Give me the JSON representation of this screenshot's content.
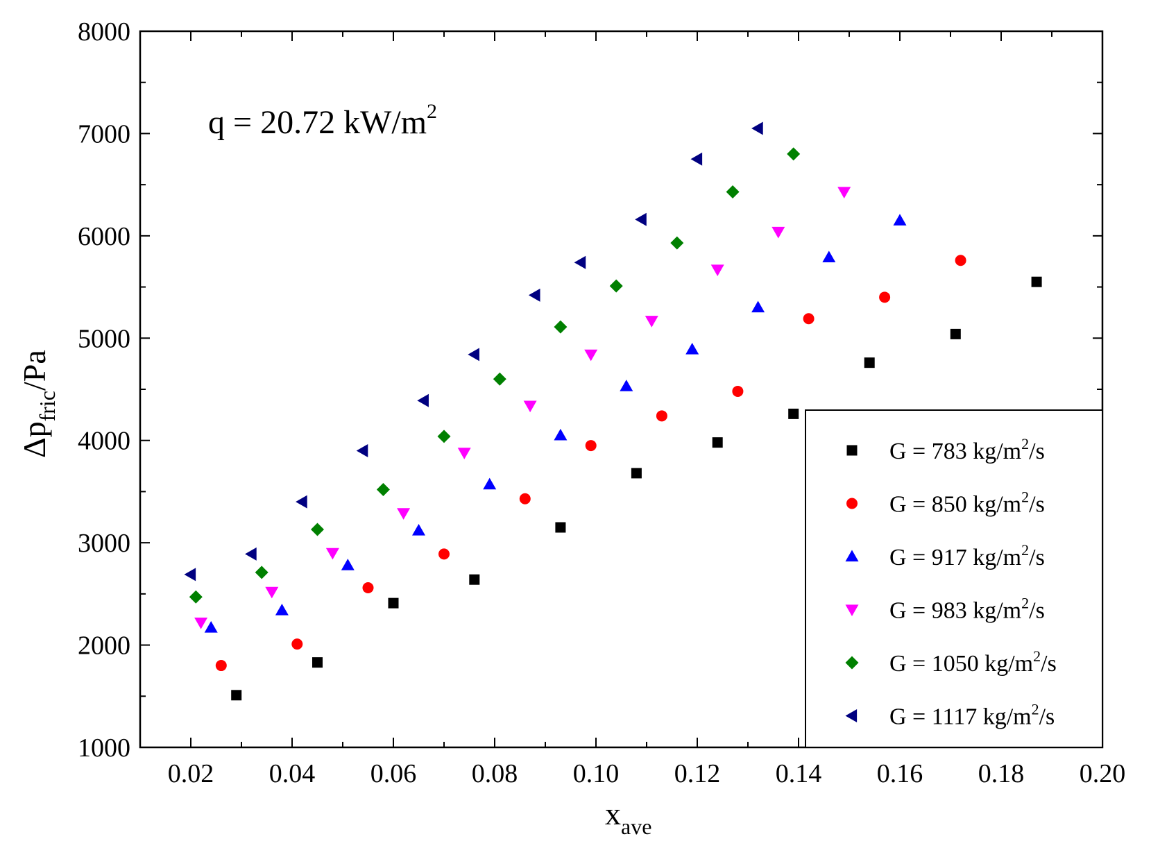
{
  "chart_data": {
    "type": "scatter",
    "title": "",
    "annotation": {
      "base": "q = 20.72 kW/m",
      "sup": "2"
    },
    "xlabel": {
      "base": "x",
      "sub": "ave"
    },
    "ylabel": {
      "pre": "Δp",
      "sub": "fric",
      "post": "/Pa"
    },
    "xlim": [
      0.01,
      0.2
    ],
    "ylim": [
      1000,
      8000
    ],
    "x_ticks": [
      0.02,
      0.04,
      0.06,
      0.08,
      0.1,
      0.12,
      0.14,
      0.16,
      0.18,
      0.2
    ],
    "x_tick_labels": [
      "0.02",
      "0.04",
      "0.06",
      "0.08",
      "0.10",
      "0.12",
      "0.14",
      "0.16",
      "0.18",
      "0.20"
    ],
    "y_ticks": [
      1000,
      2000,
      3000,
      4000,
      5000,
      6000,
      7000,
      8000
    ],
    "y_tick_labels": [
      "1000",
      "2000",
      "3000",
      "4000",
      "5000",
      "6000",
      "7000",
      "8000"
    ],
    "grid": false,
    "legend_position": "bottom-right",
    "series": [
      {
        "name": "G = 783 kg/m²/s",
        "label_pre": "G = 783 kg/m",
        "label_sup": "2",
        "label_post": "/s",
        "marker": "square",
        "color": "#000000",
        "x": [
          0.029,
          0.045,
          0.06,
          0.076,
          0.093,
          0.108,
          0.124,
          0.139,
          0.154,
          0.171,
          0.187
        ],
        "y": [
          1510,
          1830,
          2410,
          2640,
          3150,
          3680,
          3980,
          4260,
          4760,
          5040,
          5550
        ]
      },
      {
        "name": "G = 850 kg/m²/s",
        "label_pre": "G = 850 kg/m",
        "label_sup": "2",
        "label_post": "/s",
        "marker": "circle",
        "color": "#ff0000",
        "x": [
          0.026,
          0.041,
          0.055,
          0.07,
          0.086,
          0.099,
          0.113,
          0.128,
          0.142,
          0.157,
          0.172
        ],
        "y": [
          1800,
          2010,
          2560,
          2890,
          3430,
          3950,
          4240,
          4480,
          5190,
          5400,
          5760
        ]
      },
      {
        "name": "G = 917 kg/m²/s",
        "label_pre": "G = 917 kg/m",
        "label_sup": "2",
        "label_post": "/s",
        "marker": "triangle-up",
        "color": "#0000ff",
        "x": [
          0.024,
          0.038,
          0.051,
          0.065,
          0.079,
          0.093,
          0.106,
          0.119,
          0.132,
          0.146,
          0.16
        ],
        "y": [
          2170,
          2340,
          2780,
          3120,
          3570,
          4050,
          4530,
          4890,
          5300,
          5790,
          6150
        ]
      },
      {
        "name": "G = 983 kg/m²/s",
        "label_pre": "G = 983 kg/m",
        "label_sup": "2",
        "label_post": "/s",
        "marker": "triangle-down",
        "color": "#ff00ff",
        "x": [
          0.022,
          0.036,
          0.048,
          0.062,
          0.074,
          0.087,
          0.099,
          0.111,
          0.124,
          0.136,
          0.149
        ],
        "y": [
          2220,
          2520,
          2900,
          3290,
          3880,
          4340,
          4840,
          5170,
          5670,
          6040,
          6430
        ]
      },
      {
        "name": "G = 1050 kg/m²/s",
        "label_pre": "G = 1050 kg/m",
        "label_sup": "2",
        "label_post": "/s",
        "marker": "diamond",
        "color": "#008000",
        "x": [
          0.021,
          0.034,
          0.045,
          0.058,
          0.07,
          0.081,
          0.093,
          0.104,
          0.116,
          0.127,
          0.139
        ],
        "y": [
          2470,
          2710,
          3130,
          3520,
          4040,
          4600,
          5110,
          5510,
          5930,
          6430,
          6800
        ]
      },
      {
        "name": "G = 1117 kg/m²/s",
        "label_pre": "G = 1117 kg/m",
        "label_sup": "2",
        "label_post": "/s",
        "marker": "triangle-left",
        "color": "#000080",
        "x": [
          0.02,
          0.032,
          0.042,
          0.054,
          0.066,
          0.076,
          0.088,
          0.097,
          0.109,
          0.12,
          0.132
        ],
        "y": [
          2690,
          2890,
          3400,
          3900,
          4390,
          4840,
          5420,
          5740,
          6160,
          6750,
          7050
        ]
      }
    ]
  }
}
